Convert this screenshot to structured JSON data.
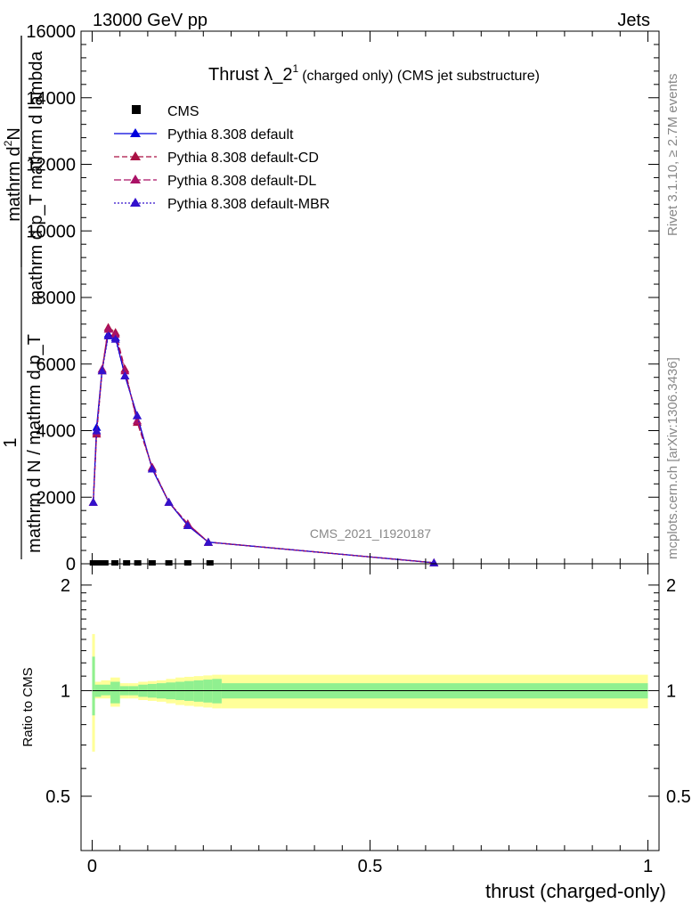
{
  "header": {
    "left": "13000 GeV pp",
    "right": "Jets"
  },
  "side_labels": {
    "rivet": "Rivet 3.1.10, ≥ 2.7M events",
    "mcplots": "mcplots.cern.ch [arXiv:1306.3436]"
  },
  "watermark": "CMS_2021_I1920187",
  "chart_data": [
    {
      "type": "line",
      "title_main": "Thrust λ_2",
      "title_sup": "1",
      "title_rest": "(charged only) (CMS jet substructure)",
      "xlabel": "thrust (charged-only)",
      "ylabel": {
        "num_top": "mathrm d",
        "num_sup": "2",
        "num_bottom": "N",
        "den": "mathrm d p_T mathrm d lambda",
        "one": "1",
        "frac_den": "mathrm d N / mathrm d p_T"
      },
      "xlim": [
        -0.02,
        1.02
      ],
      "ylim": [
        0,
        16000
      ],
      "x_ticks": [
        "0",
        "0.5",
        "1"
      ],
      "x_tick_values": [
        0,
        0.5,
        1
      ],
      "y_ticks": [
        "0",
        "2000",
        "4000",
        "6000",
        "8000",
        "10000",
        "12000",
        "14000",
        "16000"
      ],
      "y_tick_values": [
        0,
        2000,
        4000,
        6000,
        8000,
        10000,
        12000,
        14000,
        16000
      ],
      "legend_position": "top-left",
      "cms": {
        "name": "CMS",
        "x": [
          0.002,
          0.011,
          0.023,
          0.041,
          0.062,
          0.082,
          0.108,
          0.138,
          0.172,
          0.212
        ],
        "y": [
          0,
          0,
          0,
          0,
          0,
          0,
          0,
          0,
          0,
          0
        ]
      },
      "series": [
        {
          "name": "Pythia 8.308 default",
          "color": "#0000dd",
          "dash": "",
          "x": [
            0.002,
            0.008,
            0.018,
            0.029,
            0.042,
            0.059,
            0.081,
            0.108,
            0.138,
            0.172,
            0.209,
            0.615
          ],
          "y": [
            1850,
            4100,
            5850,
            6900,
            6800,
            5650,
            4450,
            2850,
            1850,
            1150,
            650,
            30
          ]
        },
        {
          "name": "Pythia 8.308 default-CD",
          "color": "#aa1144",
          "dash": "6,3",
          "x": [
            0.002,
            0.008,
            0.018,
            0.029,
            0.042,
            0.059,
            0.081,
            0.108,
            0.138,
            0.172,
            0.209,
            0.615
          ],
          "y": [
            1850,
            3900,
            5800,
            7100,
            6950,
            5850,
            4250,
            2900,
            1850,
            1200,
            650,
            30
          ]
        },
        {
          "name": "Pythia 8.308 default-DL",
          "color": "#aa1166",
          "dash": "8,3",
          "x": [
            0.002,
            0.008,
            0.018,
            0.029,
            0.042,
            0.059,
            0.081,
            0.108,
            0.138,
            0.172,
            0.209,
            0.615
          ],
          "y": [
            1850,
            3950,
            5850,
            7050,
            6900,
            5800,
            4300,
            2900,
            1850,
            1200,
            650,
            30
          ]
        },
        {
          "name": "Pythia 8.308 default-MBR",
          "color": "#3311cc",
          "dash": "2,2",
          "x": [
            0.002,
            0.008,
            0.018,
            0.029,
            0.042,
            0.059,
            0.081,
            0.108,
            0.138,
            0.172,
            0.209,
            0.615
          ],
          "y": [
            1850,
            4000,
            5800,
            6850,
            6750,
            5650,
            4450,
            2850,
            1850,
            1150,
            650,
            30
          ]
        }
      ]
    },
    {
      "type": "area",
      "ylabel": "Ratio to CMS",
      "xlim": [
        -0.02,
        1.02
      ],
      "ylim": [
        0.35,
        2.3
      ],
      "y_ticks": [
        "0.5",
        "1",
        "2"
      ],
      "y_tick_values": [
        0.5,
        1,
        2
      ],
      "x_ticks": [
        "0",
        "0.5",
        "1"
      ],
      "x_tick_values": [
        0,
        0.5,
        1
      ],
      "reference": 1,
      "band_edges": [
        0,
        0.005,
        0.016,
        0.033,
        0.05,
        0.066,
        0.083,
        0.1,
        0.116,
        0.133,
        0.15,
        0.166,
        0.183,
        0.2,
        0.216,
        0.233,
        1
      ],
      "stat_band": {
        "color": "#90f090",
        "lo": [
          0.85,
          0.96,
          0.97,
          0.92,
          0.97,
          0.97,
          0.96,
          0.955,
          0.95,
          0.945,
          0.94,
          0.935,
          0.93,
          0.925,
          0.92,
          0.95
        ],
        "hi": [
          1.25,
          1.04,
          1.04,
          1.06,
          1.03,
          1.03,
          1.04,
          1.045,
          1.05,
          1.055,
          1.06,
          1.065,
          1.07,
          1.075,
          1.08,
          1.05
        ]
      },
      "syst_band": {
        "color": "#ffff99",
        "lo": [
          0.67,
          0.95,
          0.95,
          0.9,
          0.95,
          0.95,
          0.94,
          0.935,
          0.93,
          0.92,
          0.91,
          0.905,
          0.9,
          0.895,
          0.89,
          0.89
        ],
        "hi": [
          1.45,
          1.06,
          1.07,
          1.09,
          1.05,
          1.05,
          1.06,
          1.065,
          1.07,
          1.08,
          1.09,
          1.095,
          1.1,
          1.105,
          1.11,
          1.11
        ]
      }
    }
  ]
}
